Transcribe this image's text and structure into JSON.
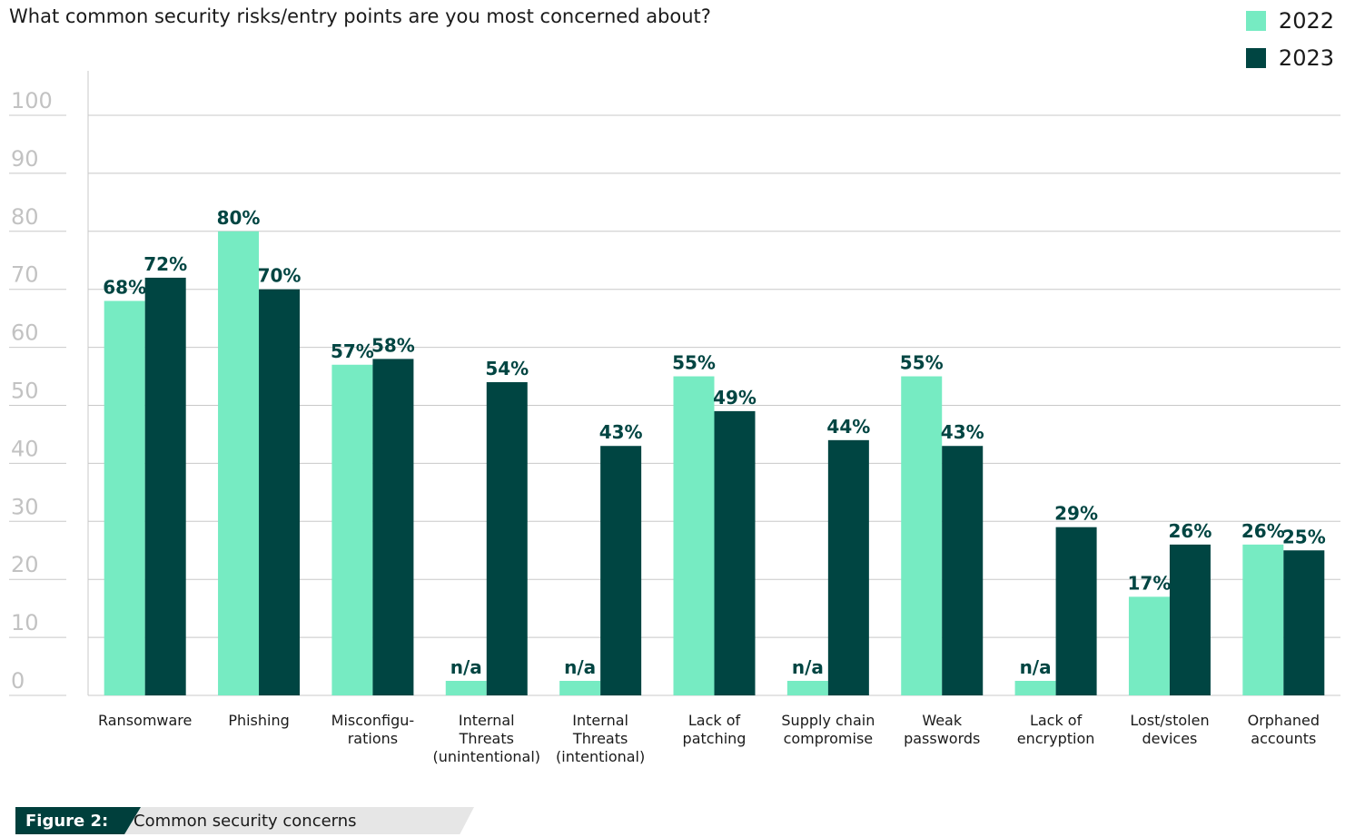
{
  "colors": {
    "s2022": "#76ebc2",
    "s2023": "#004542",
    "grid": "#c8c8c8",
    "tick": "#c8c8c8",
    "label": "#004542"
  },
  "figure": {
    "tag": "Figure 2:",
    "caption": "Common security concerns"
  },
  "chart_data": {
    "type": "bar",
    "title": "What common security risks/entry points are you most concerned about?",
    "xlabel": "",
    "ylabel": "",
    "ylim": [
      0,
      100
    ],
    "yticks": [
      "0",
      "10",
      "20",
      "30",
      "40",
      "50",
      "60",
      "70",
      "80",
      "90",
      "100"
    ],
    "grid": true,
    "legend_position": "top-right",
    "categories": [
      [
        "Ransomware"
      ],
      [
        "Phishing"
      ],
      [
        "Misconfigu-",
        "rations"
      ],
      [
        "Internal",
        "Threats",
        "(unintentional)"
      ],
      [
        "Internal",
        "Threats",
        "(intentional)"
      ],
      [
        "Lack of",
        "patching"
      ],
      [
        "Supply chain",
        "compromise"
      ],
      [
        "Weak",
        "passwords"
      ],
      [
        "Lack of",
        "encryption"
      ],
      [
        "Lost/stolen",
        "devices"
      ],
      [
        "Orphaned",
        "accounts"
      ]
    ],
    "series": [
      {
        "name": "2022",
        "values": [
          68,
          80,
          57,
          null,
          null,
          55,
          null,
          55,
          null,
          17,
          26
        ],
        "labels": [
          "68%",
          "80%",
          "57%",
          "n/a",
          "n/a",
          "55%",
          "n/a",
          "55%",
          "n/a",
          "17%",
          "26%"
        ]
      },
      {
        "name": "2023",
        "values": [
          72,
          70,
          58,
          54,
          43,
          49,
          44,
          43,
          29,
          26,
          25
        ],
        "labels": [
          "72%",
          "70%",
          "58%",
          "54%",
          "43%",
          "49%",
          "44%",
          "43%",
          "29%",
          "26%",
          "25%"
        ]
      }
    ]
  }
}
